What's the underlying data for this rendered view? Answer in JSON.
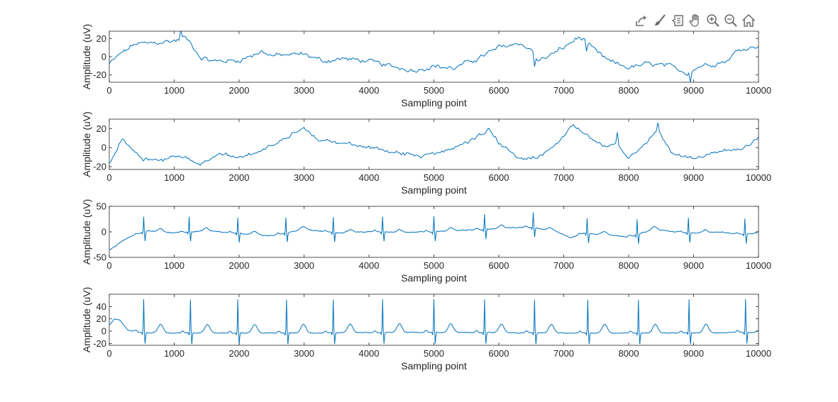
{
  "figure": {
    "background": "#ffffff",
    "line_color": "#0072BD",
    "axis_color": "#262626"
  },
  "toolbar": {
    "items": [
      {
        "name": "export-icon",
        "label": "Export"
      },
      {
        "name": "brush-icon",
        "label": "Brush"
      },
      {
        "name": "datatip-icon",
        "label": "Data Tips"
      },
      {
        "name": "pan-icon",
        "label": "Pan"
      },
      {
        "name": "zoom-in-icon",
        "label": "Zoom In"
      },
      {
        "name": "zoom-out-icon",
        "label": "Zoom Out"
      },
      {
        "name": "home-icon",
        "label": "Restore View"
      }
    ]
  },
  "chart_data": [
    {
      "type": "line",
      "signal": "eeg",
      "xlabel": "Sampling point",
      "ylabel": "Amplitude (uV)",
      "xlim": [
        0,
        10000
      ],
      "ylim": [
        -28,
        28
      ],
      "xticks": [
        0,
        1000,
        2000,
        3000,
        4000,
        5000,
        6000,
        7000,
        8000,
        9000,
        10000
      ],
      "yticks": [
        -20,
        0,
        20
      ],
      "x_step": 25,
      "baseline": [
        [
          0,
          -8
        ],
        [
          150,
          2
        ],
        [
          400,
          14
        ],
        [
          700,
          15
        ],
        [
          1050,
          18
        ],
        [
          1150,
          22
        ],
        [
          1250,
          15
        ],
        [
          1400,
          0
        ],
        [
          1600,
          -5
        ],
        [
          2000,
          -4
        ],
        [
          2350,
          6
        ],
        [
          2500,
          1
        ],
        [
          3000,
          3
        ],
        [
          3300,
          -5
        ],
        [
          3600,
          -2
        ],
        [
          4000,
          -5
        ],
        [
          4300,
          -10
        ],
        [
          4700,
          -15
        ],
        [
          5000,
          -10
        ],
        [
          5300,
          -13
        ],
        [
          5700,
          -1
        ],
        [
          6000,
          10
        ],
        [
          6300,
          15
        ],
        [
          6500,
          8
        ],
        [
          6600,
          -5
        ],
        [
          6800,
          2
        ],
        [
          7000,
          10
        ],
        [
          7200,
          20
        ],
        [
          7300,
          20
        ],
        [
          7500,
          5
        ],
        [
          7700,
          -5
        ],
        [
          8000,
          -12
        ],
        [
          8300,
          -8
        ],
        [
          8600,
          -10
        ],
        [
          8900,
          -18
        ],
        [
          9100,
          -10
        ],
        [
          9500,
          -5
        ],
        [
          9700,
          8
        ],
        [
          10000,
          12
        ]
      ],
      "noise": 3.5,
      "spikes": [
        [
          1100,
          10
        ],
        [
          6560,
          -12
        ],
        [
          8960,
          -9
        ],
        [
          7340,
          -10
        ]
      ]
    },
    {
      "type": "line",
      "signal": "eeg",
      "xlabel": "Sampling point",
      "ylabel": "Amplitude (uV)",
      "xlim": [
        0,
        10000
      ],
      "ylim": [
        -23,
        30
      ],
      "xticks": [
        0,
        1000,
        2000,
        3000,
        4000,
        5000,
        6000,
        7000,
        8000,
        9000,
        10000
      ],
      "yticks": [
        -20,
        0,
        20
      ],
      "x_step": 25,
      "baseline": [
        [
          0,
          -18
        ],
        [
          100,
          -5
        ],
        [
          200,
          10
        ],
        [
          350,
          0
        ],
        [
          500,
          -12
        ],
        [
          800,
          -14
        ],
        [
          1000,
          -8
        ],
        [
          1200,
          -12
        ],
        [
          1400,
          -18
        ],
        [
          1700,
          -5
        ],
        [
          2000,
          -10
        ],
        [
          2400,
          -2
        ],
        [
          2700,
          10
        ],
        [
          3000,
          22
        ],
        [
          3200,
          8
        ],
        [
          3600,
          5
        ],
        [
          4000,
          0
        ],
        [
          4400,
          -5
        ],
        [
          4800,
          -10
        ],
        [
          5200,
          -3
        ],
        [
          5600,
          8
        ],
        [
          5850,
          20
        ],
        [
          6000,
          5
        ],
        [
          6300,
          -12
        ],
        [
          6600,
          -10
        ],
        [
          6900,
          3
        ],
        [
          7150,
          24
        ],
        [
          7400,
          10
        ],
        [
          7650,
          2
        ],
        [
          7800,
          5
        ],
        [
          8000,
          -12
        ],
        [
          8200,
          0
        ],
        [
          8450,
          18
        ],
        [
          8650,
          -5
        ],
        [
          9000,
          -12
        ],
        [
          9400,
          -3
        ],
        [
          9700,
          -2
        ],
        [
          9900,
          5
        ],
        [
          10000,
          10
        ]
      ],
      "noise": 2.5,
      "spikes": [
        [
          7820,
          12
        ],
        [
          8450,
          6
        ]
      ]
    },
    {
      "type": "line",
      "signal": "ecg",
      "xlabel": "Sampling point",
      "ylabel": "Amplitude (uV)",
      "xlim": [
        0,
        10000
      ],
      "ylim": [
        -50,
        50
      ],
      "xticks": [
        0,
        1000,
        2000,
        3000,
        4000,
        5000,
        6000,
        7000,
        8000,
        9000,
        10000
      ],
      "yticks": [
        -50,
        0,
        50
      ],
      "x_step": 10,
      "baseline": [
        [
          0,
          -35
        ],
        [
          100,
          -28
        ],
        [
          200,
          -18
        ],
        [
          350,
          -8
        ],
        [
          600,
          2
        ],
        [
          1000,
          -2
        ],
        [
          1500,
          2
        ],
        [
          2000,
          -3
        ],
        [
          2500,
          -8
        ],
        [
          3000,
          5
        ],
        [
          3500,
          -2
        ],
        [
          4000,
          0
        ],
        [
          4500,
          -1
        ],
        [
          5000,
          0
        ],
        [
          5400,
          3
        ],
        [
          5800,
          5
        ],
        [
          6200,
          8
        ],
        [
          6500,
          9
        ],
        [
          6900,
          0
        ],
        [
          7100,
          -12
        ],
        [
          7300,
          -3
        ],
        [
          7700,
          -6
        ],
        [
          8000,
          -10
        ],
        [
          8400,
          5
        ],
        [
          8700,
          0
        ],
        [
          9000,
          -3
        ],
        [
          9400,
          0
        ],
        [
          9700,
          -5
        ],
        [
          10000,
          -2
        ]
      ],
      "noise": 1.2,
      "beats": [
        530,
        1230,
        1980,
        2720,
        3450,
        4210,
        5000,
        5780,
        6530,
        7360,
        8130,
        8920,
        9790
      ],
      "r_amp": 30,
      "s_amp": -18,
      "t_amp": 6
    },
    {
      "type": "line",
      "signal": "ecg",
      "xlabel": "Sampling point",
      "ylabel": "Amplitude (uV)",
      "xlim": [
        0,
        10000
      ],
      "ylim": [
        -23,
        60
      ],
      "xticks": [
        0,
        1000,
        2000,
        3000,
        4000,
        5000,
        6000,
        7000,
        8000,
        9000,
        10000
      ],
      "yticks": [
        -20,
        0,
        20,
        40
      ],
      "x_step": 10,
      "baseline": [
        [
          0,
          10
        ],
        [
          80,
          20
        ],
        [
          160,
          18
        ],
        [
          280,
          2
        ],
        [
          450,
          -2
        ],
        [
          1000,
          -3
        ],
        [
          3000,
          -3
        ],
        [
          5000,
          -2
        ],
        [
          7000,
          -3
        ],
        [
          9000,
          -3
        ],
        [
          10000,
          -2
        ]
      ],
      "noise": 0.8,
      "beats": [
        530,
        1250,
        1980,
        2730,
        3450,
        4210,
        5000,
        5780,
        6550,
        7370,
        8150,
        8930,
        9800
      ],
      "r_amp": 54,
      "s_amp": -18,
      "t_amp": 14
    }
  ]
}
